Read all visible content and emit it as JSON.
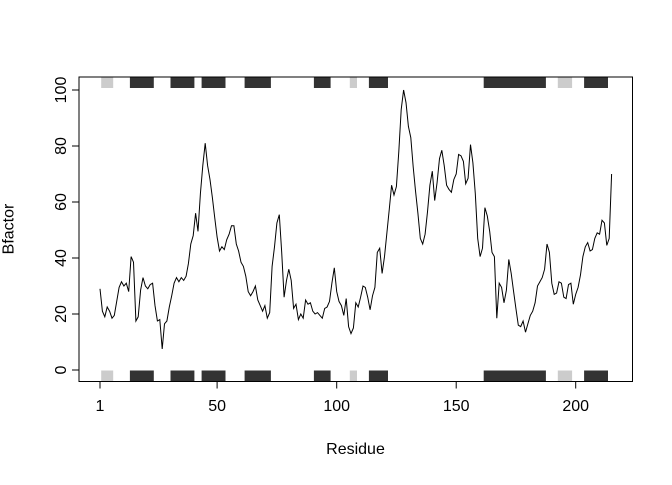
{
  "chart_data": {
    "type": "line",
    "title": "",
    "xlabel": "Residue",
    "ylabel": "Bfactor",
    "x_ticks": [
      1,
      50,
      100,
      150,
      200
    ],
    "y_ticks": [
      0,
      20,
      40,
      60,
      80,
      100
    ],
    "xlim": [
      1,
      215
    ],
    "ylim": [
      0,
      100
    ],
    "grid": false,
    "legend": "none",
    "line_color": "#000000",
    "background_color": "#ffffff",
    "series": [
      {
        "name": "Bfactor",
        "x_start": 1,
        "values": [
          29,
          21,
          19,
          22.5,
          21,
          18.5,
          19.5,
          24.5,
          29.5,
          31.5,
          30,
          31,
          28,
          40.5,
          38.5,
          17.5,
          19,
          28.5,
          33,
          30,
          29,
          30.5,
          31,
          23,
          17.5,
          18,
          7.5,
          16.5,
          17.5,
          22.5,
          26.5,
          31,
          33,
          31.5,
          33,
          32,
          33.5,
          38,
          45,
          48,
          56,
          49.5,
          63,
          73,
          81,
          73,
          68,
          61.5,
          54.5,
          47.5,
          42.5,
          44,
          43,
          46.5,
          48.5,
          51.5,
          51.5,
          45,
          42.5,
          38.5,
          37,
          33.5,
          28,
          26.5,
          28,
          30,
          25,
          23,
          21,
          23,
          18.5,
          20.5,
          37,
          44,
          52.5,
          55.5,
          42,
          26,
          32,
          36,
          32,
          22,
          23.5,
          18,
          20,
          18.5,
          25,
          23.5,
          24,
          21,
          20,
          20.5,
          19.5,
          18.5,
          22,
          22.5,
          24.5,
          31,
          36.5,
          28,
          24.5,
          23,
          19.5,
          25.5,
          15.5,
          13,
          15,
          24,
          22.5,
          26,
          30,
          29.5,
          26,
          21.5,
          26.5,
          29.5,
          42,
          43.5,
          34.5,
          40.5,
          49,
          57.5,
          66,
          62.5,
          65.5,
          78,
          93,
          100,
          95.5,
          87,
          83,
          72.5,
          64,
          56,
          47,
          45,
          48.5,
          56.5,
          66,
          71,
          60.5,
          67,
          75.5,
          78.5,
          73,
          66,
          64.5,
          63.5,
          68,
          70,
          77,
          76.5,
          74.5,
          66.5,
          68.5,
          80.5,
          74,
          63,
          47,
          40.5,
          43.5,
          58,
          55,
          49.5,
          42,
          40.5,
          18.5,
          31,
          29.5,
          24,
          28.5,
          39.5,
          34.5,
          28,
          22,
          16,
          15.5,
          17.5,
          13.5,
          16.5,
          19.5,
          21,
          24,
          30,
          31.5,
          33,
          36,
          45,
          42,
          31,
          27,
          27.5,
          31.5,
          31,
          26,
          25.5,
          30.5,
          31,
          23.5,
          27,
          29.5,
          34,
          40.5,
          44,
          45.5,
          42.5,
          43,
          47,
          49,
          48.5,
          53.5,
          52.5,
          44.5,
          47,
          70
        ]
      }
    ],
    "sse": {
      "helix_color": "#333333",
      "sheet_color": "#cccccc",
      "regions": [
        {
          "type": "sheet",
          "start": 2,
          "end": 6
        },
        {
          "type": "helix",
          "start": 14,
          "end": 23
        },
        {
          "type": "helix",
          "start": 31,
          "end": 40
        },
        {
          "type": "helix",
          "start": 44,
          "end": 53
        },
        {
          "type": "helix",
          "start": 62,
          "end": 72
        },
        {
          "type": "helix",
          "start": 91,
          "end": 97
        },
        {
          "type": "sheet",
          "start": 106,
          "end": 108
        },
        {
          "type": "helix",
          "start": 114,
          "end": 121
        },
        {
          "type": "helix",
          "start": 162,
          "end": 187
        },
        {
          "type": "sheet",
          "start": 193,
          "end": 198
        },
        {
          "type": "helix",
          "start": 204,
          "end": 213
        }
      ]
    }
  }
}
